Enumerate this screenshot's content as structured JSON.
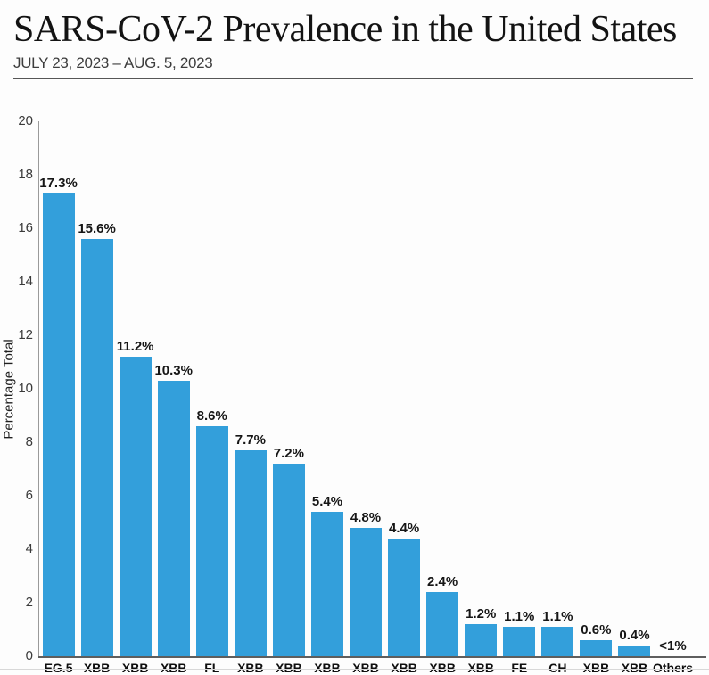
{
  "header": {
    "title": "SARS-CoV-2 Prevalence in the United States",
    "subtitle": "JULY 23, 2023 – AUG. 5, 2023"
  },
  "colors": {
    "bar": "#339FDB",
    "axis_line": "#9a9a9a",
    "baseline": "#5e5e5e",
    "title_text": "#131313",
    "subtitle_text": "#3d3d3d",
    "tick_label": "#3a3a3a",
    "value_label": "#161616",
    "background": "#fdfdfd"
  },
  "chart_data": {
    "type": "bar",
    "title": "SARS-CoV-2 Prevalence in the United States",
    "subtitle": "JULY 23, 2023 – AUG. 5, 2023",
    "xlabel": "",
    "ylabel": "Percentage Total",
    "ylim": [
      0,
      20
    ],
    "yticks": [
      20,
      18,
      16,
      14,
      12,
      10,
      8,
      6,
      4,
      2,
      0
    ],
    "grid": false,
    "legend": null,
    "bar_color": "#339FDB",
    "categories": [
      "EG.5",
      "XBB",
      "XBB",
      "XBB",
      "FL",
      "XBB",
      "XBB",
      "XBB",
      "XBB",
      "XBB",
      "XBB",
      "XBB",
      "FE",
      "CH",
      "XBB",
      "XBB",
      "Others"
    ],
    "values": [
      17.3,
      15.6,
      11.2,
      10.3,
      8.6,
      7.7,
      7.2,
      5.4,
      4.8,
      4.4,
      2.4,
      1.2,
      1.1,
      1.1,
      0.6,
      0.4,
      0
    ],
    "value_labels": [
      "17.3%",
      "15.6%",
      "11.2%",
      "10.3%",
      "8.6%",
      "7.7%",
      "7.2%",
      "5.4%",
      "4.8%",
      "4.4%",
      "2.4%",
      "1.2%",
      "1.1%",
      "1.1%",
      "0.6%",
      "0.4%",
      "<1%"
    ]
  }
}
